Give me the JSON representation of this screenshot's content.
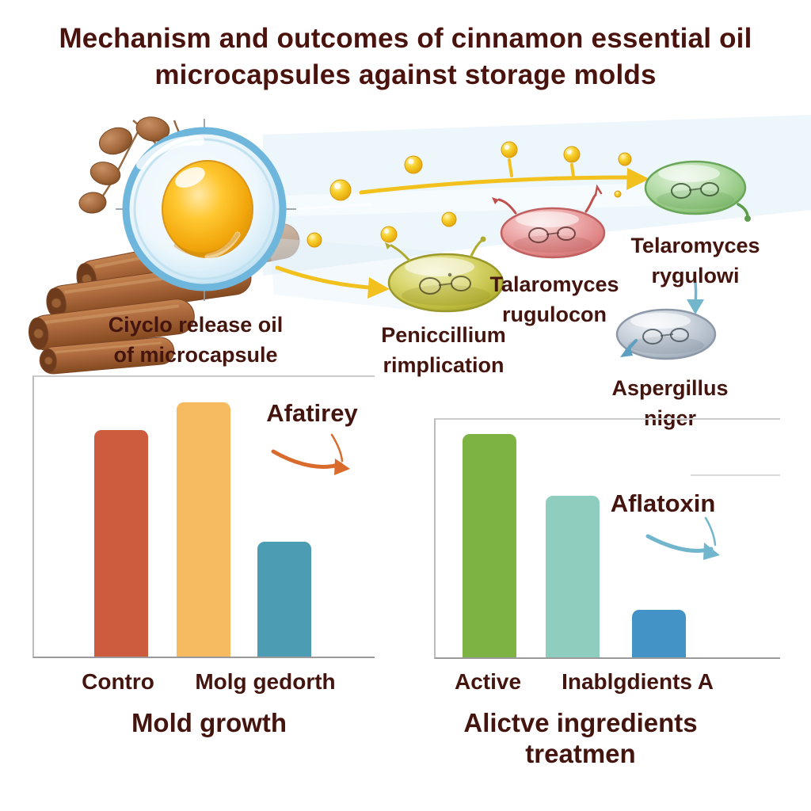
{
  "title": {
    "line1": "Mechanism and outcomes of cinnamon essential oil",
    "line2": "microcapsules against storage molds"
  },
  "diagram": {
    "capsule_caption": "Ciyclo release oil\nof microcapsule",
    "labels": {
      "penicillium": "Peniccillium\nrimplication",
      "talaromyces_red": "Talaromyces\nrugulocon",
      "talaromyces_green": "Telaromyces\nrygulowi",
      "aspergillus": "Aspergillus\nniger"
    },
    "icons": {
      "microcapsule": "blue microcapsule shell with golden cinnamon oil droplet",
      "cinnamon": "cinnamon sticks and seed pods",
      "oil_droplets": "released yellow oil droplets",
      "mold_cells": [
        "yellow mold cell",
        "red mold cell",
        "green mold cell",
        "gray mold cell"
      ]
    }
  },
  "chart_data": [
    {
      "type": "bar",
      "title": "Mold growth",
      "annotation": "Afatirey",
      "categories": [
        "Contro",
        "Molg gedorth",
        ""
      ],
      "values": [
        81,
        91,
        41
      ],
      "colors": [
        "#cd5b3e",
        "#f6ba61",
        "#4c9db3"
      ],
      "ylim": [
        0,
        100
      ],
      "grid": false,
      "legend": "none"
    },
    {
      "type": "bar",
      "title": "Alictve ingredients\ntreatmen",
      "annotation": "Aflatoxin",
      "categories": [
        "Active",
        "Inablgdients A",
        ""
      ],
      "values": [
        94,
        68,
        20
      ],
      "colors": [
        "#7db342",
        "#8fcdbf",
        "#4493c6"
      ],
      "ylim": [
        0,
        100
      ],
      "grid": false,
      "legend": "none"
    }
  ],
  "colors": {
    "title_text": "#4a130d",
    "label_text": "#44150f",
    "axis_line": "#9a9a9a",
    "frame_line": "#bcbcbc",
    "arrow_yellow": "#f2c11d",
    "arrow_orange": "#d96b2c",
    "arrow_blue": "#72b6ce",
    "capsule_blue": "#6fb6dc",
    "oil_gold": "#f0a90b",
    "droplet_yellow": "#f5c718",
    "cinnamon_brown": "#a6643a",
    "cell_yellow": "#c5c043",
    "cell_red": "#dd8585",
    "cell_green": "#8fc482",
    "cell_gray": "#aeb8c4"
  }
}
